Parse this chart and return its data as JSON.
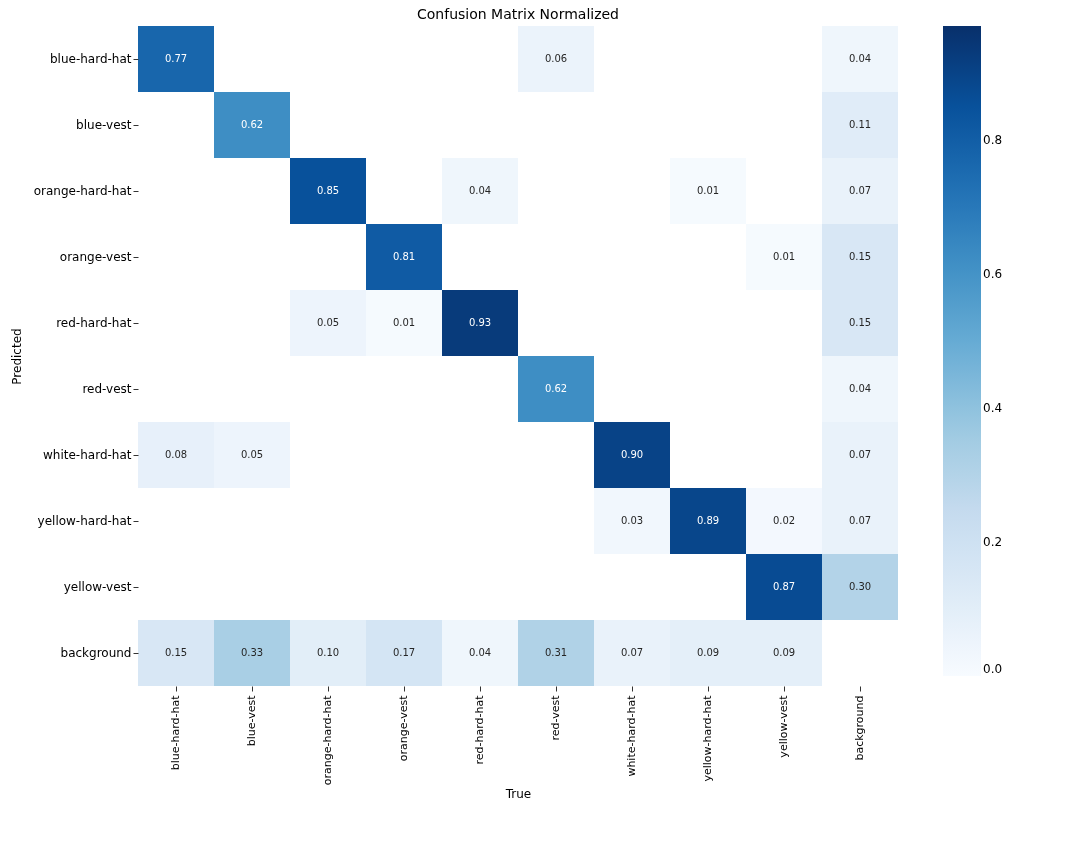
{
  "chart_data": {
    "type": "heatmap",
    "title": "Confusion Matrix Normalized",
    "xlabel": "True",
    "ylabel": "Predicted",
    "categories": [
      "blue-hard-hat",
      "blue-vest",
      "orange-hard-hat",
      "orange-vest",
      "red-hard-hat",
      "red-vest",
      "white-hard-hat",
      "yellow-hard-hat",
      "yellow-vest",
      "background"
    ],
    "y_categories": [
      "blue-hard-hat",
      "blue-vest",
      "orange-hard-hat",
      "orange-vest",
      "red-hard-hat",
      "red-vest",
      "white-hard-hat",
      "yellow-hard-hat",
      "yellow-vest",
      "background"
    ],
    "cells": [
      [
        0.77,
        null,
        null,
        null,
        null,
        0.06,
        null,
        null,
        null,
        0.04
      ],
      [
        null,
        0.62,
        null,
        null,
        null,
        null,
        null,
        null,
        null,
        0.11
      ],
      [
        null,
        null,
        0.85,
        null,
        0.04,
        null,
        null,
        0.01,
        null,
        0.07
      ],
      [
        null,
        null,
        null,
        0.81,
        null,
        null,
        null,
        null,
        0.01,
        0.15
      ],
      [
        null,
        null,
        0.05,
        0.01,
        0.93,
        null,
        null,
        null,
        null,
        0.15
      ],
      [
        null,
        null,
        null,
        null,
        null,
        0.62,
        null,
        null,
        null,
        0.04
      ],
      [
        0.08,
        0.05,
        null,
        null,
        null,
        null,
        0.9,
        null,
        null,
        0.07
      ],
      [
        null,
        null,
        null,
        null,
        null,
        null,
        0.03,
        0.89,
        0.02,
        0.07
      ],
      [
        null,
        null,
        null,
        null,
        null,
        null,
        null,
        null,
        0.87,
        0.3
      ],
      [
        0.15,
        0.33,
        0.1,
        0.17,
        0.04,
        0.31,
        0.07,
        0.09,
        0.09,
        null
      ]
    ],
    "cell_labels": [
      [
        "0.77",
        null,
        null,
        null,
        null,
        "0.06",
        null,
        null,
        null,
        "0.04"
      ],
      [
        null,
        "0.62",
        null,
        null,
        null,
        null,
        null,
        null,
        null,
        "0.11"
      ],
      [
        null,
        null,
        "0.85",
        null,
        "0.04",
        null,
        null,
        "0.01",
        null,
        "0.07"
      ],
      [
        null,
        null,
        null,
        "0.81",
        null,
        null,
        null,
        null,
        "0.01",
        "0.15"
      ],
      [
        null,
        null,
        "0.05",
        "0.01",
        "0.93",
        null,
        null,
        null,
        null,
        "0.15"
      ],
      [
        null,
        null,
        null,
        null,
        null,
        "0.62",
        null,
        null,
        null,
        "0.04"
      ],
      [
        "0.08",
        "0.05",
        null,
        null,
        null,
        null,
        "0.90",
        null,
        null,
        "0.07"
      ],
      [
        null,
        null,
        null,
        null,
        null,
        null,
        "0.03",
        "0.89",
        "0.02",
        "0.07"
      ],
      [
        null,
        null,
        null,
        null,
        null,
        null,
        null,
        null,
        "0.87",
        "0.30"
      ],
      [
        "0.15",
        "0.33",
        "0.10",
        "0.17",
        "0.04",
        "0.31",
        "0.07",
        "0.09",
        "0.09",
        null
      ]
    ],
    "clim": [
      0,
      0.97
    ],
    "cticks": [
      {
        "value": 0,
        "label": "0.0"
      },
      0.2,
      0.4,
      0.6,
      0.8
    ]
  }
}
